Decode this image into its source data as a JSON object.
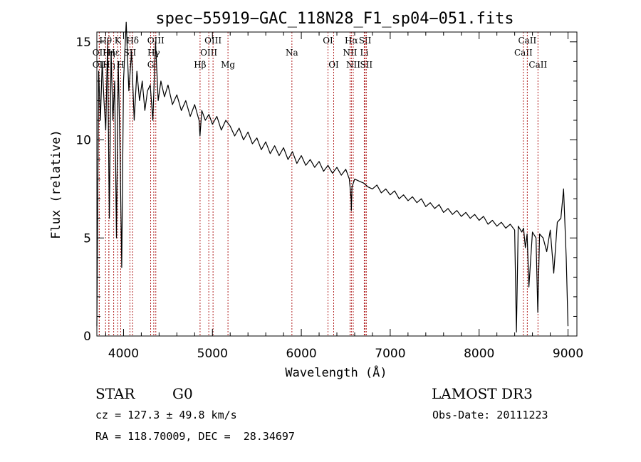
{
  "chart_data": {
    "type": "line",
    "title": "spec−55919−GAC_118N28_F1_sp04−051.fits",
    "xlabel": "Wavelength (Å)",
    "ylabel": "Flux (relative)",
    "xlim": [
      3700,
      9100
    ],
    "ylim": [
      0,
      15.5
    ],
    "xticks": [
      4000,
      5000,
      6000,
      7000,
      8000,
      9000
    ],
    "yticks": [
      0,
      5,
      10,
      15
    ],
    "series": [
      {
        "name": "flux",
        "x": [
          3700,
          3720,
          3740,
          3760,
          3780,
          3800,
          3820,
          3840,
          3860,
          3880,
          3900,
          3920,
          3940,
          3960,
          3980,
          4000,
          4030,
          4060,
          4090,
          4120,
          4150,
          4180,
          4210,
          4240,
          4270,
          4300,
          4330,
          4360,
          4390,
          4420,
          4460,
          4500,
          4550,
          4600,
          4650,
          4700,
          4750,
          4800,
          4850,
          4860,
          4880,
          4920,
          4960,
          5000,
          5050,
          5100,
          5150,
          5200,
          5250,
          5300,
          5350,
          5400,
          5450,
          5500,
          5550,
          5600,
          5650,
          5700,
          5750,
          5800,
          5850,
          5900,
          5950,
          6000,
          6050,
          6100,
          6150,
          6200,
          6250,
          6300,
          6350,
          6400,
          6450,
          6500,
          6540,
          6560,
          6563,
          6570,
          6600,
          6650,
          6700,
          6750,
          6800,
          6850,
          6900,
          6950,
          7000,
          7050,
          7100,
          7150,
          7200,
          7250,
          7300,
          7350,
          7400,
          7450,
          7500,
          7550,
          7600,
          7650,
          7700,
          7750,
          7800,
          7850,
          7900,
          7950,
          8000,
          8050,
          8100,
          8150,
          8200,
          8250,
          8300,
          8350,
          8400,
          8420,
          8440,
          8480,
          8500,
          8520,
          8540,
          8560,
          8600,
          8640,
          8660,
          8680,
          8720,
          8760,
          8800,
          8840,
          8880,
          8920,
          8950,
          8980,
          9000
        ],
        "values": [
          0.5,
          13.5,
          11.0,
          14.0,
          12.0,
          10.5,
          15.0,
          6.0,
          14.5,
          11.0,
          13.0,
          5.0,
          14.0,
          9.5,
          3.5,
          13.0,
          16.0,
          12.5,
          14.5,
          11.0,
          13.5,
          12.0,
          13.0,
          11.5,
          12.5,
          12.8,
          11.0,
          15.0,
          12.0,
          13.0,
          12.2,
          12.8,
          11.8,
          12.3,
          11.5,
          12.0,
          11.2,
          11.8,
          11.0,
          10.2,
          11.5,
          11.0,
          11.3,
          10.8,
          11.2,
          10.5,
          11.0,
          10.7,
          10.2,
          10.6,
          10.0,
          10.4,
          9.8,
          10.1,
          9.5,
          9.9,
          9.3,
          9.7,
          9.2,
          9.6,
          9.0,
          9.4,
          8.8,
          9.2,
          8.7,
          9.0,
          8.6,
          8.9,
          8.4,
          8.7,
          8.3,
          8.6,
          8.2,
          8.5,
          8.0,
          7.0,
          6.4,
          7.6,
          8.0,
          7.9,
          7.8,
          7.6,
          7.5,
          7.7,
          7.3,
          7.5,
          7.2,
          7.4,
          7.0,
          7.2,
          6.9,
          7.1,
          6.8,
          7.0,
          6.6,
          6.8,
          6.5,
          6.7,
          6.3,
          6.5,
          6.2,
          6.4,
          6.1,
          6.3,
          6.0,
          6.2,
          5.9,
          6.1,
          5.7,
          5.9,
          5.6,
          5.8,
          5.5,
          5.7,
          5.4,
          0.2,
          5.6,
          5.3,
          5.5,
          4.5,
          5.2,
          2.5,
          5.3,
          5.0,
          1.2,
          5.2,
          5.0,
          4.3,
          5.4,
          3.2,
          5.8,
          6.0,
          7.5,
          4.0,
          0.5
        ]
      }
    ],
    "spectral_lines": [
      {
        "label": "Hθ",
        "x": 3798,
        "row": 1
      },
      {
        "label": "OII",
        "x": 3727,
        "row": 2
      },
      {
        "label": "OII",
        "x": 3727,
        "row": 3
      },
      {
        "label": "Hη",
        "x": 3835,
        "row": 2
      },
      {
        "label": "Hη",
        "x": 3835,
        "row": 3
      },
      {
        "label": "Hε",
        "x": 3889,
        "row": 2
      },
      {
        "label": "K",
        "x": 3934,
        "row": 1
      },
      {
        "label": "H",
        "x": 3968,
        "row": 3
      },
      {
        "label": "SII",
        "x": 4072,
        "row": 2
      },
      {
        "label": "Hδ",
        "x": 4102,
        "row": 1
      },
      {
        "label": "G",
        "x": 4305,
        "row": 3
      },
      {
        "label": "Hγ",
        "x": 4340,
        "row": 2
      },
      {
        "label": "OIII",
        "x": 4363,
        "row": 1
      },
      {
        "label": "Hβ",
        "x": 4861,
        "row": 3
      },
      {
        "label": "OIII",
        "x": 4959,
        "row": 2
      },
      {
        "label": "OIII",
        "x": 5007,
        "row": 1
      },
      {
        "label": "Mg",
        "x": 5175,
        "row": 3
      },
      {
        "label": "Na",
        "x": 5894,
        "row": 2
      },
      {
        "label": "OI",
        "x": 6300,
        "row": 1
      },
      {
        "label": "OI",
        "x": 6364,
        "row": 3
      },
      {
        "label": "NII",
        "x": 6548,
        "row": 2
      },
      {
        "label": "Hα",
        "x": 6563,
        "row": 1
      },
      {
        "label": "NII",
        "x": 6584,
        "row": 3
      },
      {
        "label": "Li",
        "x": 6708,
        "row": 2
      },
      {
        "label": "SII",
        "x": 6717,
        "row": 1
      },
      {
        "label": "SII",
        "x": 6731,
        "row": 3
      },
      {
        "label": "CaII",
        "x": 8498,
        "row": 2
      },
      {
        "label": "CaII",
        "x": 8542,
        "row": 1
      },
      {
        "label": "CaII",
        "x": 8662,
        "row": 3
      }
    ]
  },
  "info": {
    "class": "STAR",
    "subclass": "G0",
    "survey": "LAMOST DR3",
    "cz": "cz = 127.3 ± 49.8 km/s",
    "obs_date": "Obs-Date: 20111223",
    "radec": "RA = 118.70009, DEC =  28.34697"
  }
}
